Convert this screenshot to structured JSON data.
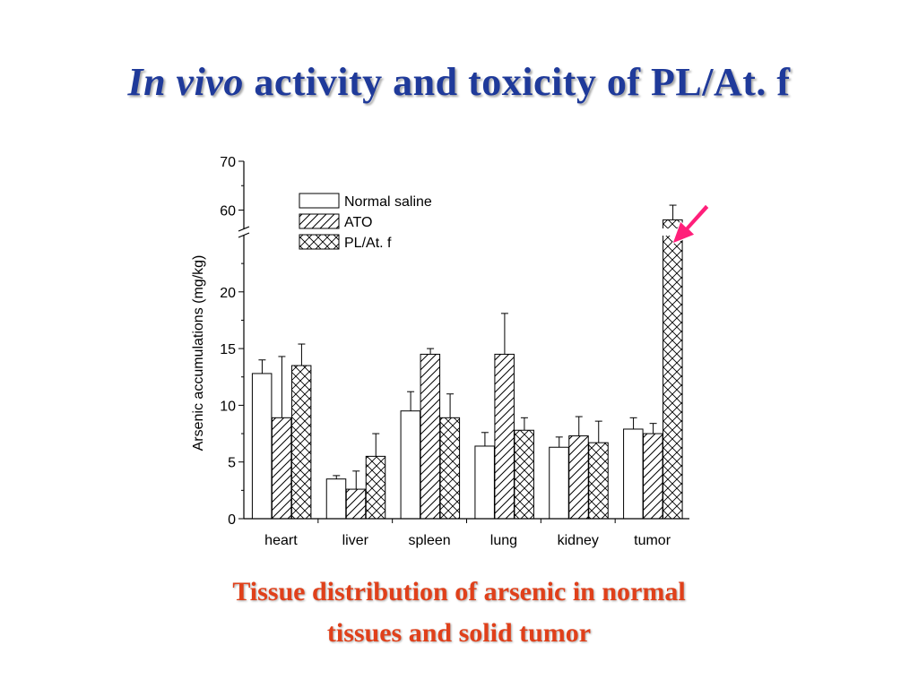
{
  "slide": {
    "title_italic": "In vivo",
    "title_rest": "activity and toxicity of PL/At. f",
    "title_color": "#1f3a9a",
    "caption_line1": "Tissue distribution of arsenic in normal",
    "caption_line2": "tissues and solid tumor",
    "caption_color": "#e0401a",
    "arrow_color": "#ff1f7a",
    "arrow_icon": "pink-arrow-pointing-to-tumor-bar"
  },
  "chart_data": {
    "type": "bar",
    "title": "",
    "xlabel": "",
    "ylabel": "Arsenic accumulations (mg/kg)",
    "categories": [
      "heart",
      "liver",
      "spleen",
      "lung",
      "kidney",
      "tumor"
    ],
    "ylim": [
      0,
      70
    ],
    "axis_break": [
      25,
      55
    ],
    "yticks": [
      0,
      5,
      10,
      15,
      20,
      60,
      70
    ],
    "grid": false,
    "legend_position": "top-center",
    "series": [
      {
        "name": "Normal saline",
        "pattern": "open",
        "values": [
          12.8,
          3.5,
          9.5,
          6.4,
          6.3,
          7.9
        ],
        "errors": [
          1.2,
          0.3,
          1.7,
          1.2,
          0.9,
          1.0
        ]
      },
      {
        "name": "ATO",
        "pattern": "diagonal-hatch",
        "values": [
          8.9,
          2.6,
          14.5,
          14.5,
          7.3,
          7.5
        ],
        "errors": [
          5.4,
          1.6,
          0.5,
          3.6,
          1.7,
          0.9
        ]
      },
      {
        "name": "PL/At. f",
        "pattern": "crosshatch",
        "values": [
          13.5,
          5.5,
          8.9,
          7.8,
          6.7,
          58.0
        ],
        "errors": [
          1.9,
          2.0,
          2.1,
          1.1,
          1.9,
          3.0
        ]
      }
    ]
  }
}
